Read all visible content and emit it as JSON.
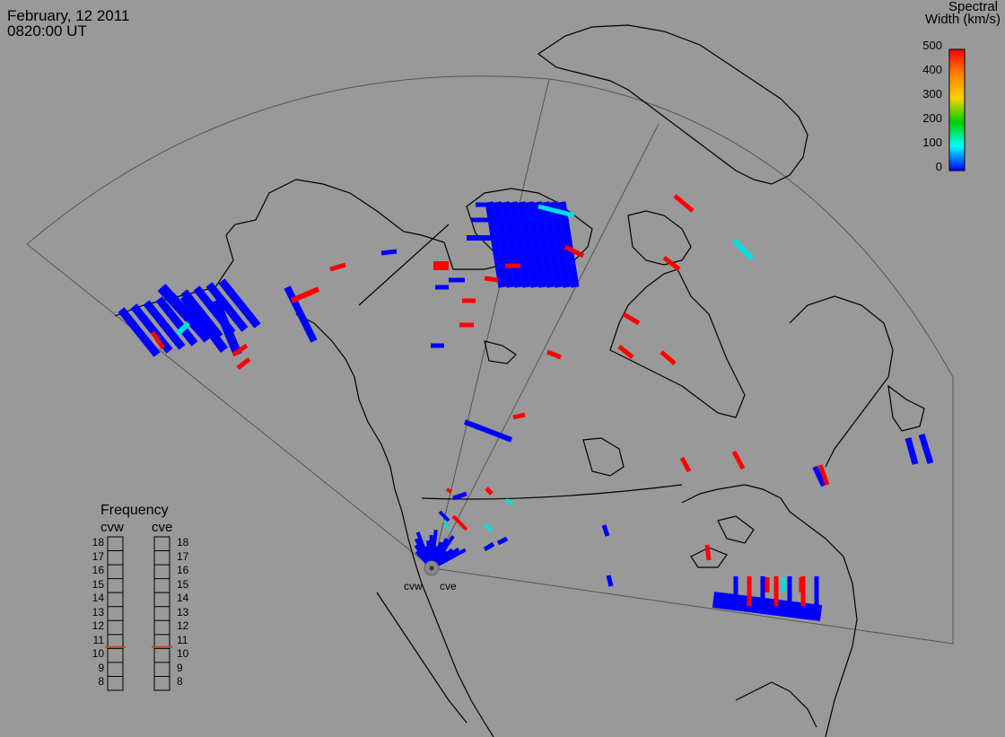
{
  "header": {
    "date": "February, 12 2011",
    "time": "0820:00 UT"
  },
  "colorbar": {
    "title_line1": "Spectral",
    "title_line2": "Width (km/s)",
    "ticks": [
      "500",
      "400",
      "300",
      "200",
      "100",
      "0"
    ],
    "colors": [
      "#ff0000",
      "#ff8000",
      "#ffd000",
      "#00d000",
      "#00ffff",
      "#0000ff"
    ]
  },
  "frequency_panel": {
    "title": "Frequency",
    "radars": [
      "cvw",
      "cve"
    ],
    "scale": [
      "18",
      "17",
      "16",
      "15",
      "14",
      "13",
      "12",
      "11",
      "10",
      "9",
      "8"
    ],
    "current_mhz": [
      10.6,
      10.6
    ],
    "marker_color": "#e04000"
  },
  "radar_sites": [
    "cvw",
    "cve"
  ],
  "map": {
    "background": "#999999",
    "coast_color": "#000000",
    "fov_color": "#555555",
    "scatter_colors": {
      "low": "#0000ff",
      "high": "#ff0000",
      "mid": "#00e0e0"
    }
  }
}
